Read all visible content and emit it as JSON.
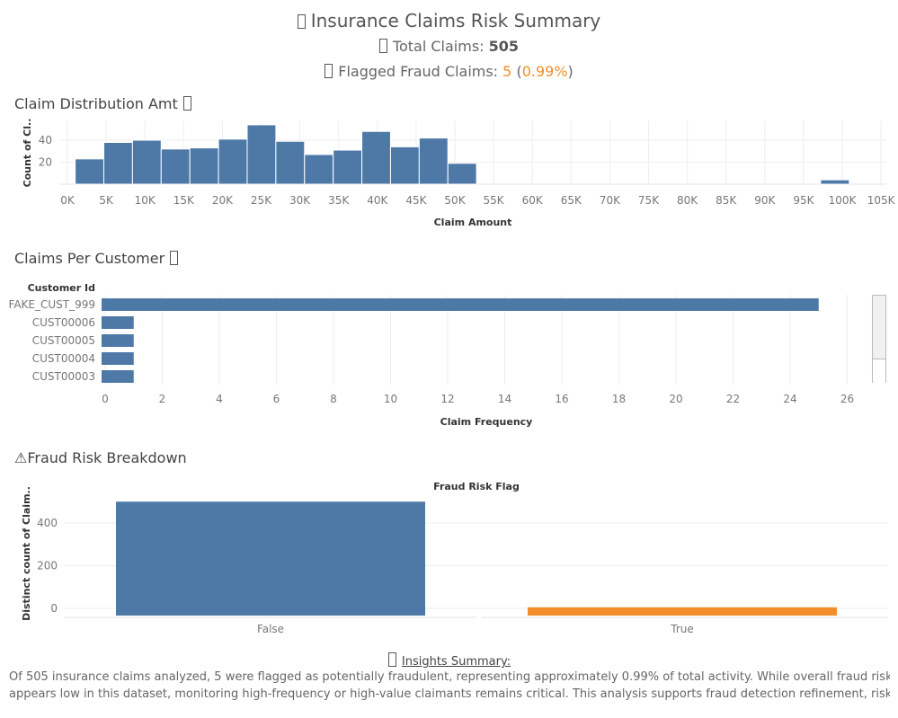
{
  "header": {
    "title": "Insurance Claims Risk Summary",
    "total_label": "Total Claims:",
    "total_value": "505",
    "flagged_label": "Flagged Fraud Claims:",
    "flagged_value": "5",
    "flagged_pct": "0.99%"
  },
  "sections": {
    "distribution_title": "Claim Distribution Amt",
    "customer_title": "Claims Per Customer",
    "fraud_title": "⚠Fraud Risk Breakdown"
  },
  "insights": {
    "title": "Insights Summary:",
    "line1": "Of 505 insurance claims analyzed, 5 were flagged as potentially fraudulent, representing approximately 0.99% of total activity. While overall fraud risk",
    "line2": "appears low in this dataset, monitoring high-frequency or high-value claimants remains critical. This analysis supports fraud detection refinement, risk scorin.."
  },
  "colors": {
    "bar": "#4e79a7",
    "orange": "#f28e2b",
    "grid": "#eeeeee"
  },
  "chart_data": [
    {
      "type": "bar",
      "title": "Claim Distribution Amt",
      "xlabel": "Claim Amount",
      "ylabel": "Count of Cl..",
      "x_ticks": [
        "0K",
        "5K",
        "10K",
        "15K",
        "20K",
        "25K",
        "30K",
        "35K",
        "40K",
        "45K",
        "50K",
        "55K",
        "60K",
        "65K",
        "70K",
        "75K",
        "80K",
        "85K",
        "90K",
        "95K",
        "100K",
        "105K"
      ],
      "y_ticks": [
        20,
        40
      ],
      "xlim": [
        0,
        106000
      ],
      "ylim": [
        0,
        58
      ],
      "bin_width": 3700,
      "bins": [
        {
          "start": 1000,
          "value": 23
        },
        {
          "start": 4700,
          "value": 38
        },
        {
          "start": 8400,
          "value": 40
        },
        {
          "start": 12100,
          "value": 32
        },
        {
          "start": 15800,
          "value": 33
        },
        {
          "start": 19500,
          "value": 41
        },
        {
          "start": 23200,
          "value": 54
        },
        {
          "start": 26900,
          "value": 39
        },
        {
          "start": 30600,
          "value": 27
        },
        {
          "start": 34300,
          "value": 31
        },
        {
          "start": 38000,
          "value": 48
        },
        {
          "start": 41700,
          "value": 34
        },
        {
          "start": 45400,
          "value": 42
        },
        {
          "start": 49100,
          "value": 19
        },
        {
          "start": 97200,
          "value": 4
        }
      ]
    },
    {
      "type": "bar",
      "orientation": "horizontal",
      "title": "Claims Per Customer",
      "xlabel": "Claim Frequency",
      "ylabel": "Customer Id",
      "categories": [
        "FAKE_CUST_999",
        "CUST00006",
        "CUST00005",
        "CUST00004",
        "CUST00003"
      ],
      "values": [
        25,
        1,
        1,
        1,
        1
      ],
      "x_ticks": [
        0,
        2,
        4,
        6,
        8,
        10,
        12,
        14,
        16,
        18,
        20,
        22,
        24,
        26
      ],
      "xlim": [
        0,
        27
      ]
    },
    {
      "type": "bar",
      "title": "Fraud Risk Flag",
      "ylabel": "Distinct count of Claim..",
      "categories": [
        "False",
        "True"
      ],
      "values": [
        500,
        5
      ],
      "y_ticks": [
        0,
        200,
        400
      ],
      "ylim": [
        0,
        520
      ]
    }
  ]
}
